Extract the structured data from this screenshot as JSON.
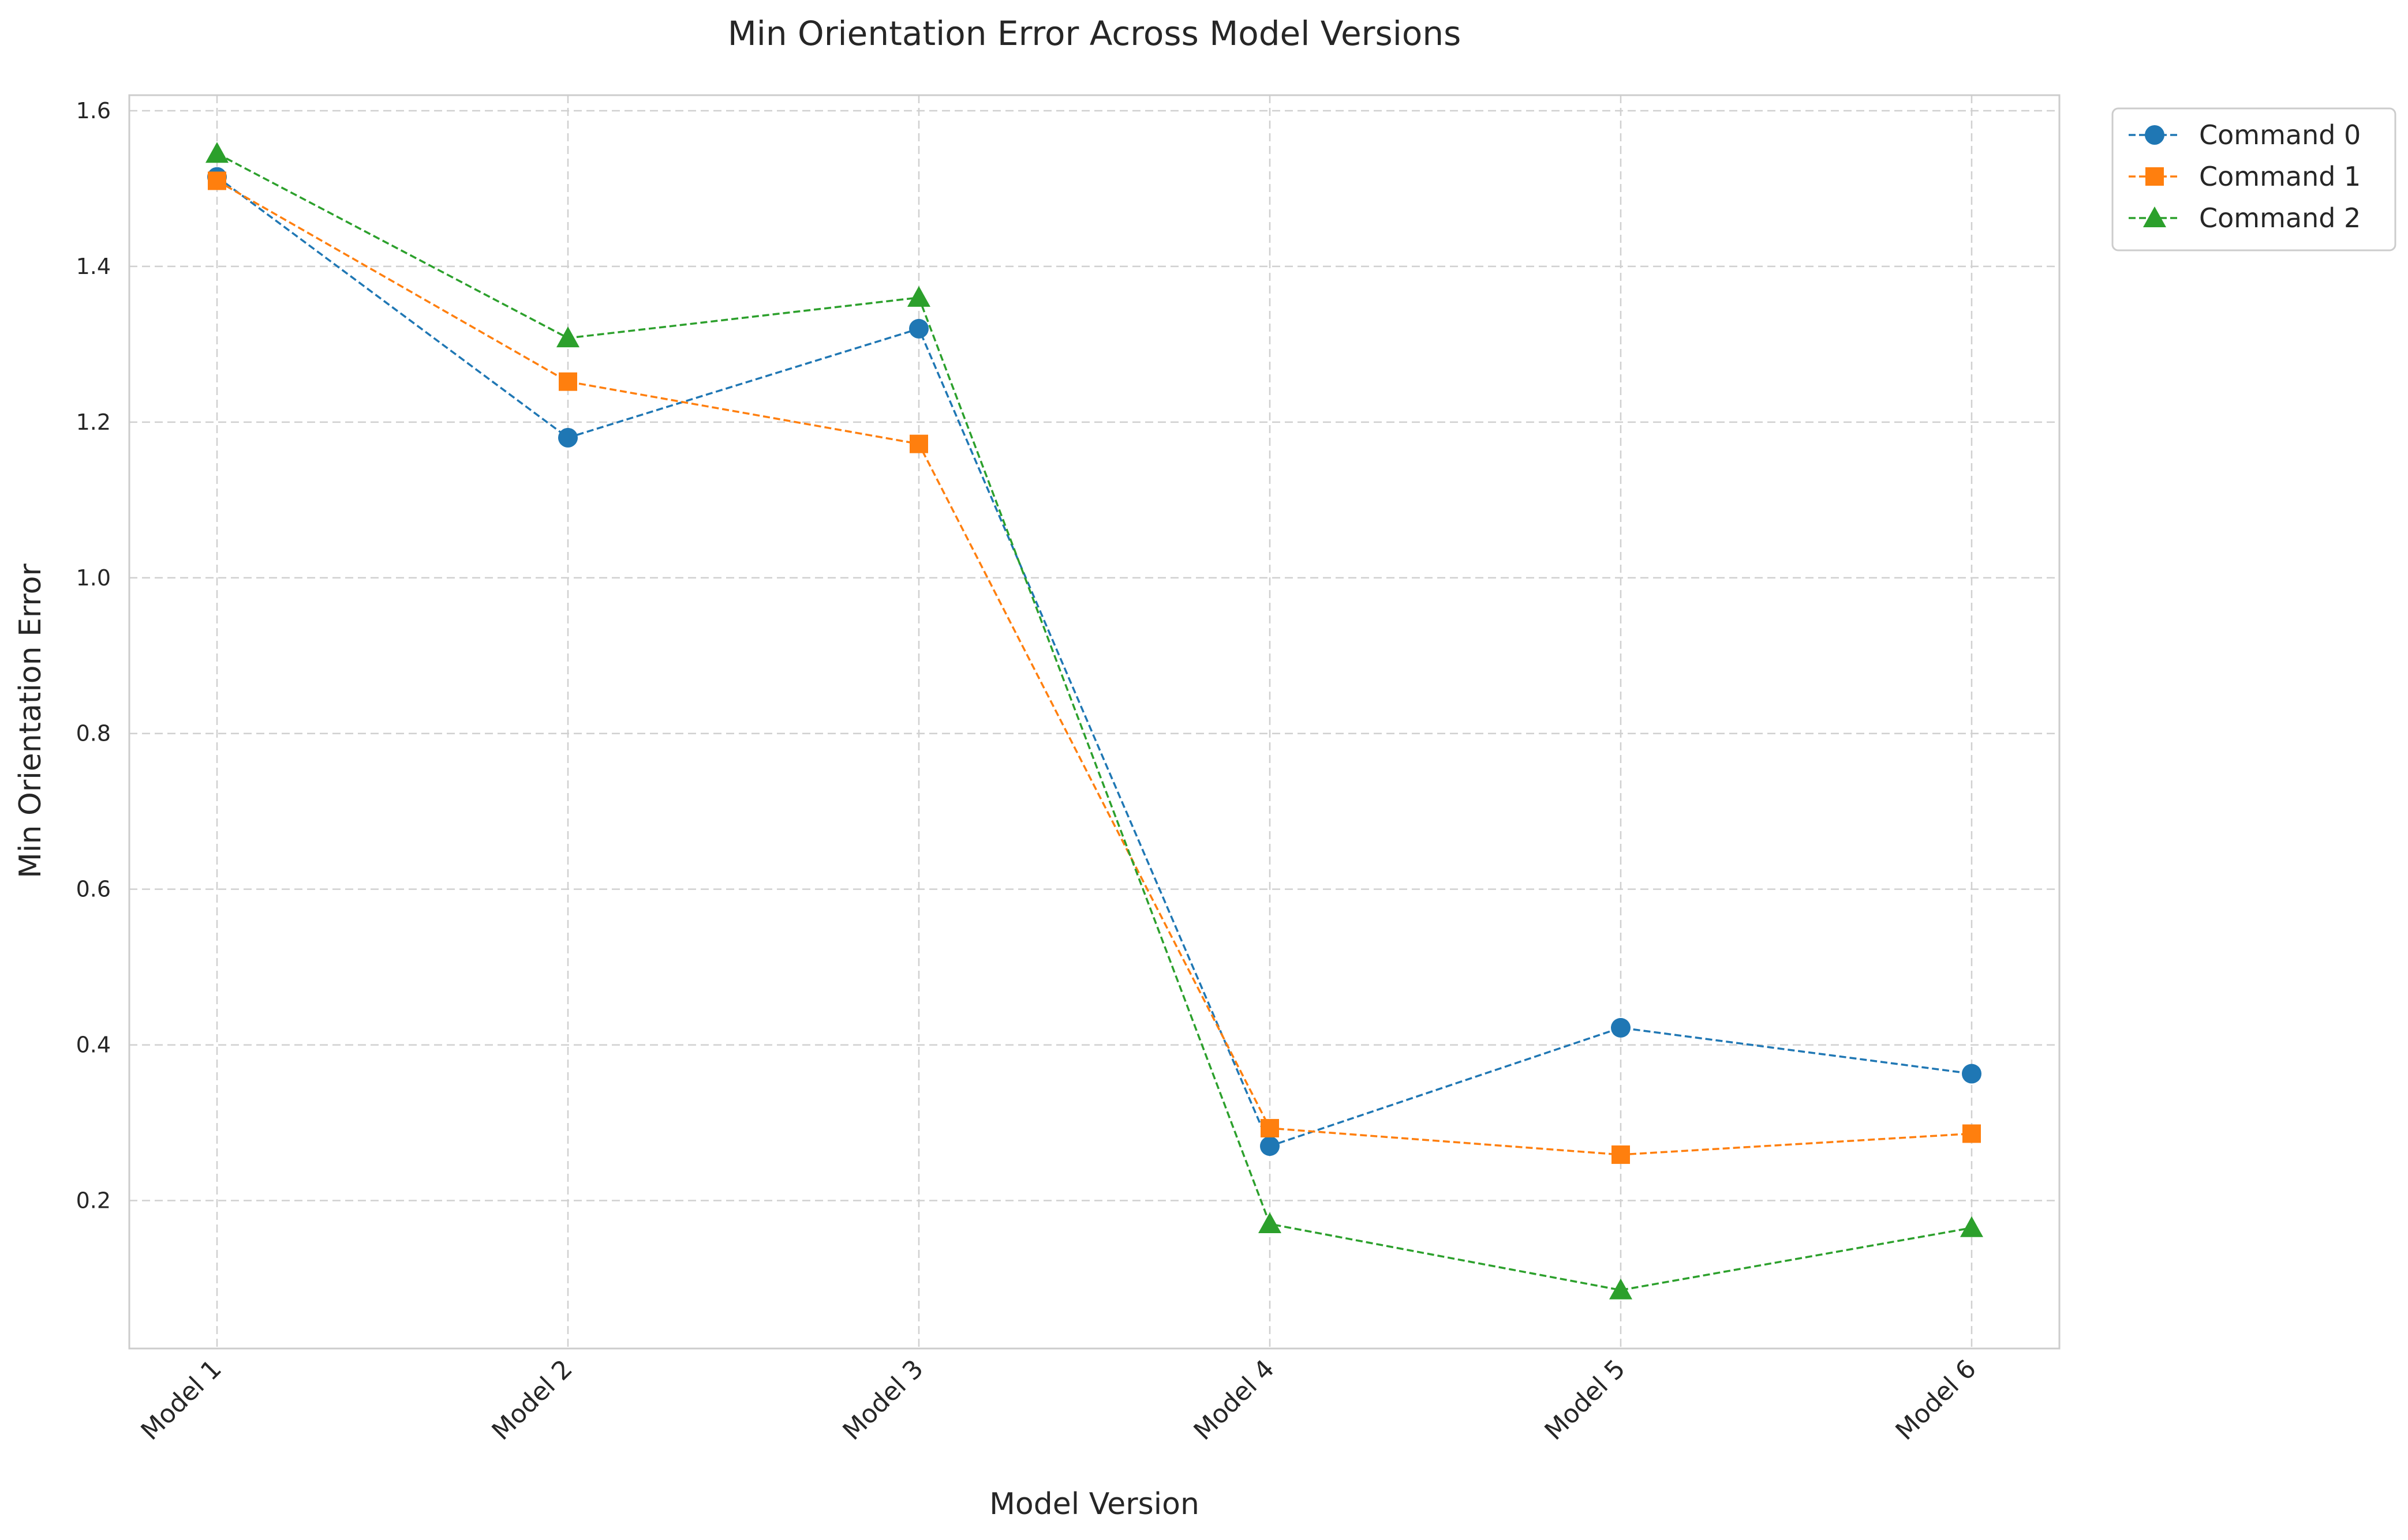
{
  "chart_data": {
    "type": "line",
    "title": "Min Orientation Error Across Model Versions",
    "xlabel": "Model Version",
    "ylabel": "Min Orientation Error",
    "categories": [
      "Model 1",
      "Model 2",
      "Model 3",
      "Model 4",
      "Model 5",
      "Model 6"
    ],
    "ylim": [
      0.01,
      1.62
    ],
    "yticks": [
      0.2,
      0.4,
      0.6,
      0.8,
      1.0,
      1.2,
      1.4,
      1.6
    ],
    "ytick_labels": [
      "0.2",
      "0.4",
      "0.6",
      "0.8",
      "1.0",
      "1.2",
      "1.4",
      "1.6"
    ],
    "grid": true,
    "legend_position": "outside-top-right",
    "series": [
      {
        "name": "Command 0",
        "values": [
          1.515,
          1.18,
          1.32,
          0.27,
          0.422,
          0.363
        ],
        "color": "#1f77b4",
        "marker": "circle",
        "line_style": "dashed"
      },
      {
        "name": "Command 1",
        "values": [
          1.51,
          1.252,
          1.172,
          0.293,
          0.259,
          0.286
        ],
        "color": "#ff7f0e",
        "marker": "square",
        "line_style": "dashed"
      },
      {
        "name": "Command 2",
        "values": [
          1.545,
          1.308,
          1.36,
          0.17,
          0.085,
          0.165
        ],
        "color": "#2ca02c",
        "marker": "triangle",
        "line_style": "dashed"
      }
    ]
  }
}
